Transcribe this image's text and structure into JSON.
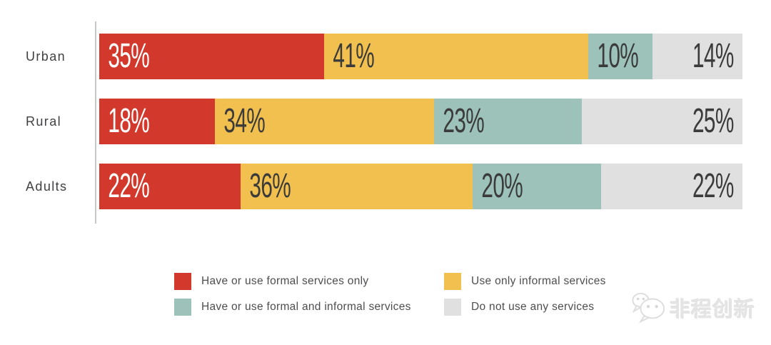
{
  "chart_data": {
    "type": "bar",
    "orientation": "horizontal",
    "stacked": true,
    "grid": false,
    "xlim": [
      0,
      100
    ],
    "value_suffix": "%",
    "categories": [
      "Urban",
      "Rural",
      "Adults"
    ],
    "series": [
      {
        "name": "Have or use formal services only",
        "color": "#d2392c",
        "label_color": "#ffffff",
        "values": [
          35,
          18,
          22
        ]
      },
      {
        "name": "Use only informal services",
        "color": "#f2c04e",
        "label_color": "#3b3b3b",
        "values": [
          41,
          34,
          36
        ]
      },
      {
        "name": "Have or use formal and informal services",
        "color": "#9dc2b9",
        "label_color": "#3b3b3b",
        "values": [
          10,
          23,
          20
        ]
      },
      {
        "name": "Do not use any services",
        "color": "#e0e0e0",
        "label_color": "#3b3b3b",
        "values": [
          14,
          25,
          22
        ]
      }
    ],
    "legend_position": "bottom"
  },
  "legend": {
    "items": [
      {
        "label": "Have or use formal services only",
        "color": "#d2392c"
      },
      {
        "label": "Have or use formal and informal services",
        "color": "#9dc2b9"
      },
      {
        "label": "Use only informal services",
        "color": "#f2c04e"
      },
      {
        "label": "Do not use any services",
        "color": "#e0e0e0"
      }
    ]
  },
  "watermark": {
    "icon": "wechat-icon",
    "text": "非程创新"
  },
  "colors": {
    "axis_line": "#c7c9c9",
    "category_label": "#414042",
    "legend_text": "#4e4e50",
    "background": "#ffffff"
  }
}
